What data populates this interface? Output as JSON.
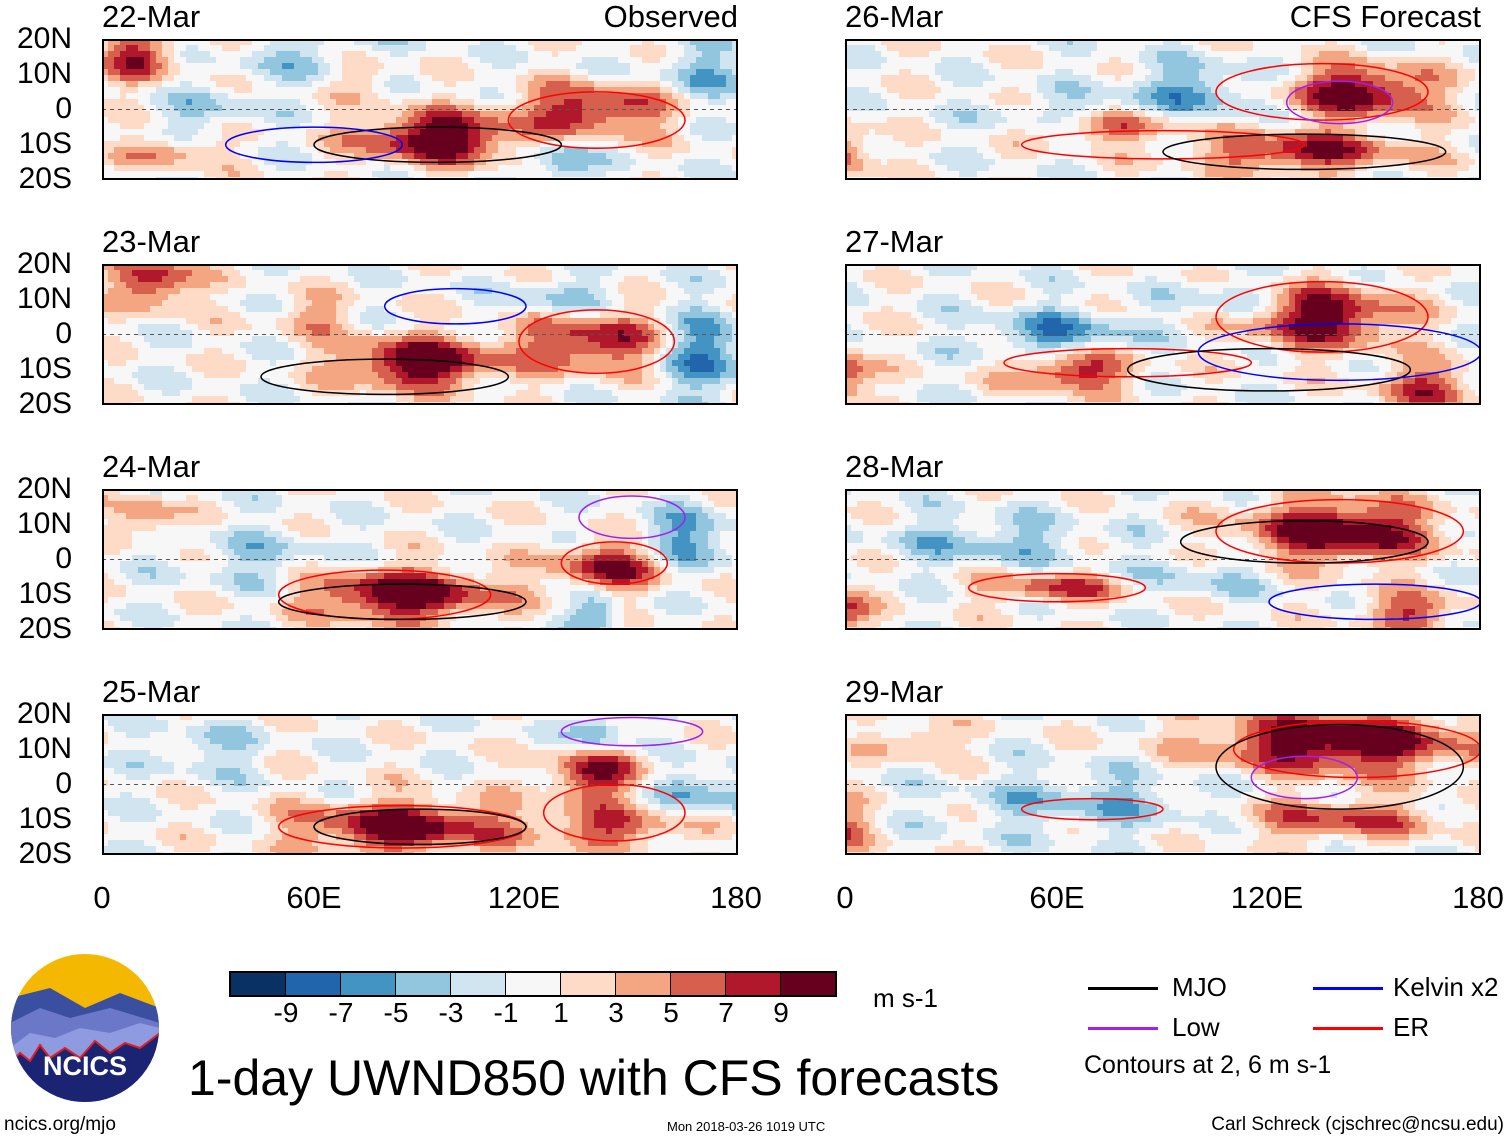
{
  "title": "1-day UWND850 with CFS forecasts",
  "url": "ncics.org/mjo",
  "timestamp": "Mon 2018-03-26 1019 UTC",
  "author": "Carl Schreck (cjschrec@ncsu.edu)",
  "logo_text": "NCICS",
  "observed_label": "Observed",
  "forecast_label": "CFS Forecast",
  "lat_ticks": [
    "20N",
    "10N",
    "0",
    "10S",
    "20S"
  ],
  "lon_ticks": [
    "0",
    "60E",
    "120E",
    "180"
  ],
  "colorbar": {
    "units": "m s-1",
    "labels": [
      "-9",
      "-7",
      "-5",
      "-3",
      "-1",
      "1",
      "3",
      "5",
      "7",
      "9"
    ],
    "colors": [
      "#0a3163",
      "#2166ac",
      "#4393c3",
      "#92c5de",
      "#d1e5f0",
      "#f7f7f7",
      "#fddbc7",
      "#f4a582",
      "#d6604d",
      "#b2182b",
      "#67001f"
    ]
  },
  "legend": {
    "items": [
      {
        "label": "MJO",
        "color": "#000000"
      },
      {
        "label": "Kelvin x2",
        "color": "#0000ff"
      },
      {
        "label": "Low",
        "color": "#a020f0"
      },
      {
        "label": "ER",
        "color": "#ff0000"
      }
    ],
    "note": "Contours at 2, 6 m s-1"
  },
  "panels": [
    {
      "date": "22-Mar",
      "column": "observed",
      "features": [
        [
          95,
          -8,
          12,
          15,
          5
        ],
        [
          140,
          0,
          9,
          15,
          5
        ],
        [
          10,
          15,
          8,
          8,
          5
        ],
        [
          20,
          -12,
          5,
          10,
          3
        ],
        [
          130,
          -15,
          -6,
          6,
          4
        ],
        [
          60,
          15,
          -3,
          15,
          5
        ],
        [
          30,
          0,
          -3,
          10,
          5
        ],
        [
          170,
          10,
          -4,
          10,
          6
        ],
        [
          75,
          10,
          4,
          6,
          4
        ]
      ],
      "contours": [
        [
          "ER",
          140,
          -3,
          25,
          8
        ],
        [
          "MJO",
          95,
          -10,
          35,
          5
        ],
        [
          "Kelvin",
          60,
          -10,
          25,
          5
        ]
      ]
    },
    {
      "date": "23-Mar",
      "column": "observed",
      "features": [
        [
          90,
          -8,
          12,
          15,
          5
        ],
        [
          140,
          -2,
          9,
          15,
          6
        ],
        [
          15,
          15,
          9,
          8,
          5
        ],
        [
          170,
          -5,
          -7,
          10,
          8
        ],
        [
          60,
          5,
          4,
          8,
          4
        ],
        [
          130,
          10,
          -4,
          10,
          4
        ]
      ],
      "contours": [
        [
          "ER",
          140,
          -2,
          22,
          9
        ],
        [
          "MJO",
          80,
          -12,
          35,
          5
        ],
        [
          "Kelvin",
          100,
          8,
          20,
          5
        ]
      ]
    },
    {
      "date": "24-Mar",
      "column": "observed",
      "features": [
        [
          85,
          -10,
          12,
          18,
          5
        ],
        [
          145,
          -2,
          9,
          12,
          5
        ],
        [
          140,
          -15,
          -6,
          5,
          4
        ],
        [
          12,
          12,
          6,
          6,
          4
        ],
        [
          165,
          5,
          -6,
          10,
          6
        ],
        [
          45,
          0,
          -3,
          15,
          6
        ]
      ],
      "contours": [
        [
          "ER",
          80,
          -10,
          30,
          7
        ],
        [
          "ER",
          145,
          -1,
          15,
          6
        ],
        [
          "MJO",
          85,
          -12,
          35,
          5
        ],
        [
          "Low",
          150,
          12,
          15,
          6
        ]
      ]
    },
    {
      "date": "25-Mar",
      "column": "observed",
      "features": [
        [
          85,
          -12,
          11,
          20,
          5
        ],
        [
          140,
          3,
          9,
          10,
          5
        ],
        [
          145,
          -12,
          7,
          15,
          4
        ],
        [
          140,
          15,
          -6,
          5,
          4
        ],
        [
          170,
          -2,
          -5,
          10,
          5
        ],
        [
          30,
          10,
          -3,
          10,
          5
        ]
      ],
      "contours": [
        [
          "ER",
          85,
          -12,
          35,
          6
        ],
        [
          "ER",
          145,
          -8,
          20,
          8
        ],
        [
          "MJO",
          90,
          -12,
          30,
          5
        ],
        [
          "Low",
          150,
          15,
          20,
          4
        ]
      ]
    },
    {
      "date": "26-Mar",
      "column": "forecast",
      "features": [
        [
          145,
          5,
          11,
          15,
          5
        ],
        [
          130,
          -12,
          9,
          20,
          4
        ],
        [
          75,
          -5,
          7,
          15,
          3
        ],
        [
          0,
          -12,
          7,
          5,
          5
        ],
        [
          100,
          5,
          -5,
          15,
          6
        ],
        [
          60,
          -2,
          -3,
          15,
          4
        ]
      ],
      "contours": [
        [
          "ER",
          135,
          5,
          30,
          8
        ],
        [
          "ER",
          90,
          -10,
          40,
          4
        ],
        [
          "MJO",
          130,
          -12,
          40,
          5
        ],
        [
          "Low",
          140,
          2,
          15,
          6
        ]
      ]
    },
    {
      "date": "27-Mar",
      "column": "forecast",
      "features": [
        [
          135,
          5,
          11,
          15,
          6
        ],
        [
          65,
          -10,
          9,
          12,
          4
        ],
        [
          165,
          -15,
          7,
          10,
          5
        ],
        [
          0,
          -12,
          8,
          5,
          5
        ],
        [
          60,
          0,
          -6,
          15,
          5
        ],
        [
          110,
          10,
          -4,
          10,
          4
        ]
      ],
      "contours": [
        [
          "ER",
          135,
          5,
          30,
          10
        ],
        [
          "ER",
          80,
          -8,
          35,
          4
        ],
        [
          "MJO",
          120,
          -10,
          40,
          6
        ],
        [
          "Kelvin",
          140,
          -5,
          40,
          8
        ]
      ]
    },
    {
      "date": "28-Mar",
      "column": "forecast",
      "features": [
        [
          140,
          8,
          12,
          18,
          6
        ],
        [
          60,
          -8,
          7,
          15,
          3
        ],
        [
          160,
          -15,
          7,
          10,
          4
        ],
        [
          0,
          -15,
          7,
          5,
          4
        ],
        [
          40,
          5,
          -4,
          20,
          5
        ],
        [
          100,
          -5,
          -3,
          15,
          4
        ]
      ],
      "contours": [
        [
          "ER",
          140,
          8,
          35,
          9
        ],
        [
          "ER",
          60,
          -8,
          25,
          4
        ],
        [
          "MJO",
          130,
          5,
          35,
          6
        ],
        [
          "Kelvin",
          150,
          -12,
          30,
          5
        ]
      ]
    },
    {
      "date": "29-Mar",
      "column": "forecast",
      "features": [
        [
          140,
          12,
          12,
          25,
          6
        ],
        [
          140,
          -10,
          7,
          20,
          4
        ],
        [
          20,
          12,
          5,
          8,
          3
        ],
        [
          70,
          -5,
          -4,
          25,
          6
        ],
        [
          0,
          -12,
          6,
          5,
          4
        ]
      ],
      "contours": [
        [
          "ER",
          145,
          10,
          35,
          8
        ],
        [
          "ER",
          70,
          -7,
          20,
          3
        ],
        [
          "MJO",
          140,
          5,
          35,
          12
        ],
        [
          "Low",
          130,
          2,
          15,
          6
        ]
      ]
    }
  ]
}
